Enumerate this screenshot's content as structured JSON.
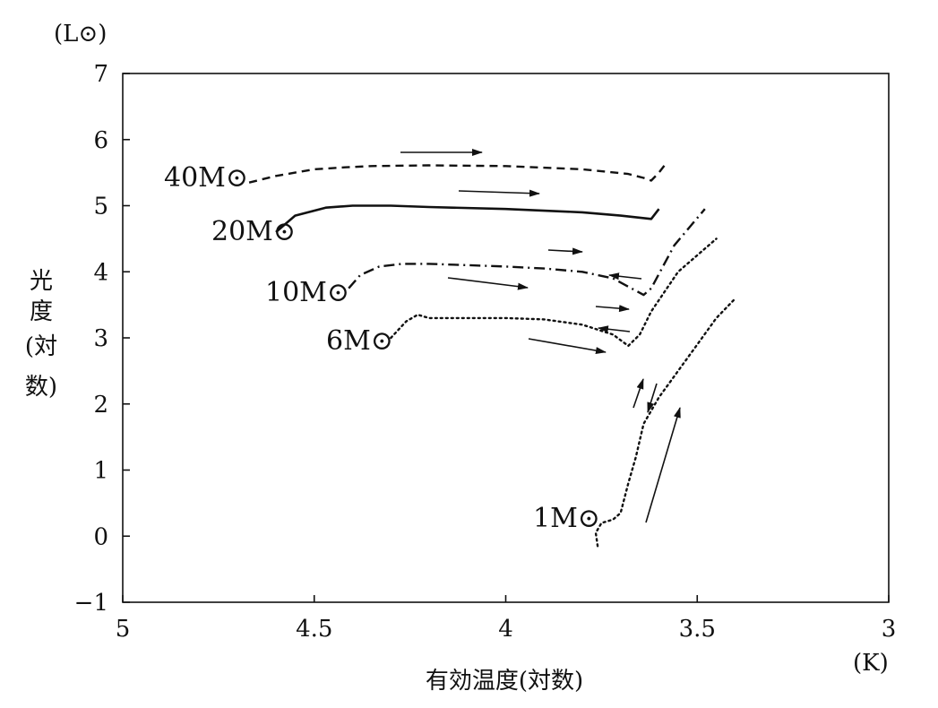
{
  "chart_data": {
    "type": "line",
    "xlabel": "有効温度(対数)",
    "xunit": "(K)",
    "ylabel_chars": [
      "光",
      "度",
      "(対",
      "数)"
    ],
    "yunit": "(L⊙)",
    "xlim": [
      5,
      3
    ],
    "ylim": [
      -1,
      7
    ],
    "xticks": [
      5,
      4.5,
      4,
      3.5,
      3
    ],
    "xtick_labels": [
      "5",
      "4.5",
      "4",
      "3.5",
      "3"
    ],
    "yticks": [
      -1,
      0,
      1,
      2,
      3,
      4,
      5,
      6,
      7
    ],
    "ytick_labels": [
      "−1",
      "0",
      "1",
      "2",
      "3",
      "4",
      "5",
      "6",
      "7"
    ],
    "grid": false,
    "series": [
      {
        "name": "40M⊙",
        "style": "dashed",
        "x": [
          4.67,
          4.6,
          4.5,
          4.42,
          4.35,
          4.2,
          4.0,
          3.8,
          3.68,
          3.64,
          3.62,
          3.6,
          3.58
        ],
        "y": [
          5.35,
          5.45,
          5.55,
          5.58,
          5.6,
          5.61,
          5.6,
          5.55,
          5.48,
          5.42,
          5.38,
          5.5,
          5.65
        ]
      },
      {
        "name": "20M⊙",
        "style": "solid",
        "x": [
          4.6,
          4.55,
          4.47,
          4.4,
          4.3,
          4.2,
          4.0,
          3.8,
          3.7,
          3.62,
          3.6
        ],
        "y": [
          4.6,
          4.85,
          4.97,
          5.0,
          5.0,
          4.98,
          4.95,
          4.9,
          4.85,
          4.8,
          4.95
        ]
      },
      {
        "name": "10M⊙",
        "style": "dashdot",
        "x": [
          4.41,
          4.38,
          4.33,
          4.27,
          4.2,
          4.1,
          4.0,
          3.9,
          3.8,
          3.72,
          3.64,
          3.62,
          3.56,
          3.48
        ],
        "y": [
          3.75,
          3.95,
          4.08,
          4.12,
          4.12,
          4.1,
          4.08,
          4.05,
          4.0,
          3.9,
          3.65,
          3.75,
          4.4,
          4.95
        ]
      },
      {
        "name": "6M⊙",
        "style": "dotted",
        "x": [
          4.3,
          4.26,
          4.23,
          4.2,
          4.1,
          4.0,
          3.9,
          3.8,
          3.72,
          3.68,
          3.65,
          3.62,
          3.55,
          3.45
        ],
        "y": [
          3.0,
          3.25,
          3.35,
          3.3,
          3.3,
          3.3,
          3.28,
          3.2,
          3.05,
          2.88,
          3.05,
          3.4,
          4.0,
          4.5
        ]
      },
      {
        "name": "1M⊙",
        "style": "dotted",
        "x": [
          3.76,
          3.765,
          3.75,
          3.72,
          3.7,
          3.68,
          3.66,
          3.64,
          3.6,
          3.55,
          3.5,
          3.45,
          3.4
        ],
        "y": [
          -0.15,
          0.05,
          0.2,
          0.25,
          0.35,
          0.8,
          1.2,
          1.7,
          2.1,
          2.5,
          2.9,
          3.3,
          3.6
        ]
      }
    ]
  }
}
